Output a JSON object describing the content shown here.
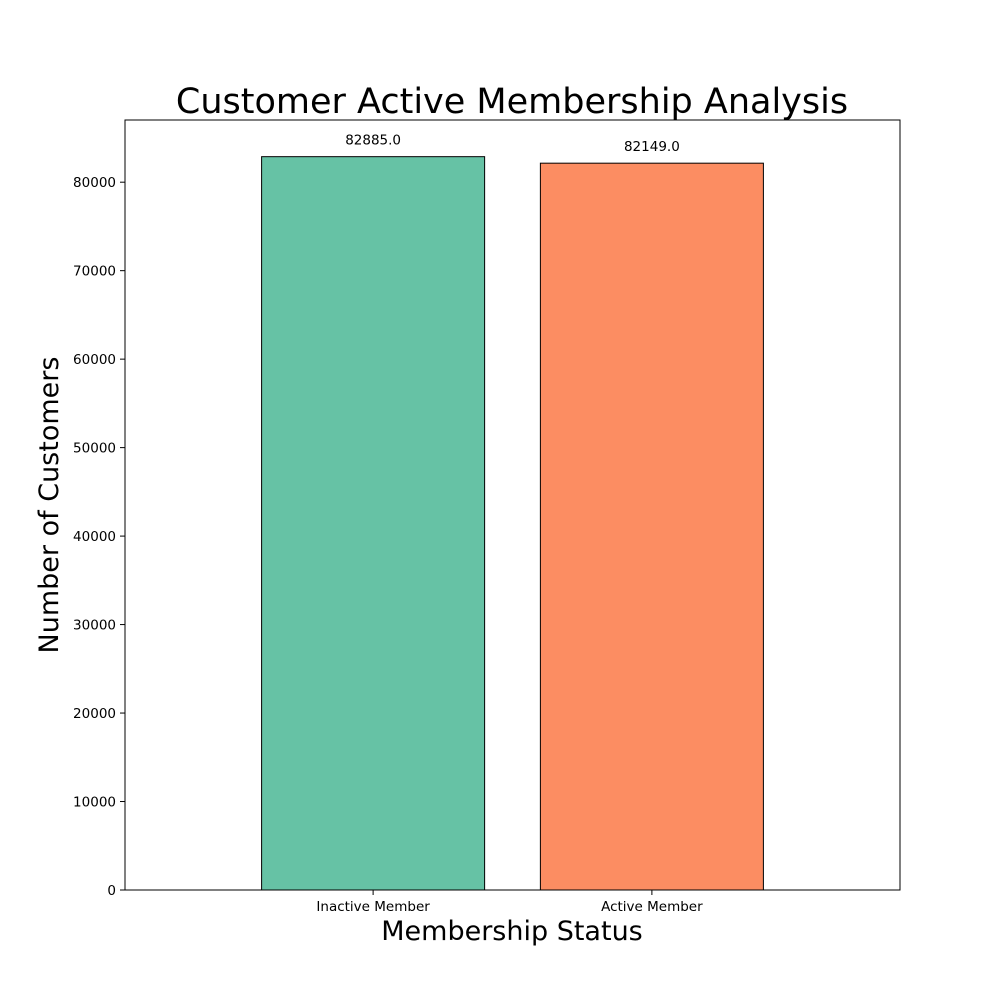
{
  "chart_data": {
    "type": "bar",
    "title": "Customer Active Membership Analysis",
    "xlabel": "Membership Status",
    "ylabel": "Number of Customers",
    "categories": [
      "Inactive Member",
      "Active Member"
    ],
    "values": [
      82885.0,
      82149.0
    ],
    "data_labels": [
      "82885.0",
      "82149.0"
    ],
    "colors": [
      "#66c2a5",
      "#fc8d62"
    ],
    "edge_color": "#000000",
    "ylim": [
      0,
      87029
    ],
    "yticks": [
      0,
      10000,
      20000,
      30000,
      40000,
      50000,
      60000,
      70000,
      80000
    ],
    "ytick_labels": [
      "0",
      "10000",
      "20000",
      "30000",
      "40000",
      "50000",
      "60000",
      "70000",
      "80000"
    ],
    "grid": false,
    "legend": "none"
  }
}
